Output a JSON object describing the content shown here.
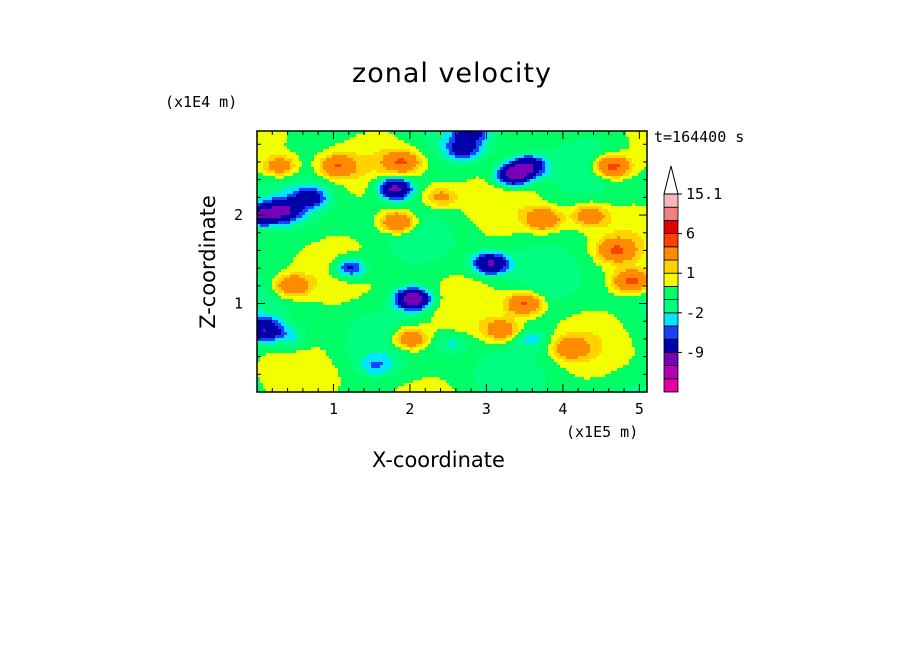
{
  "chart_data": {
    "type": "heatmap",
    "title": "zonal velocity",
    "xlabel": "X-coordinate",
    "ylabel": "Z-coordinate",
    "x_unit": "(x1E5 m)",
    "y_unit": "(x1E4 m)",
    "time_label": "t=164400 s",
    "xlim": [
      0,
      5.1
    ],
    "ylim": [
      0,
      2.95
    ],
    "x_ticks": [
      "1",
      "2",
      "3",
      "4",
      "5"
    ],
    "x_tick_values": [
      1,
      2,
      3,
      4,
      5
    ],
    "y_ticks": [
      "1",
      "2"
    ],
    "y_tick_values": [
      1,
      2
    ],
    "colorbar": {
      "labels": [
        "15.1",
        "6",
        "1",
        "-2",
        "-9"
      ],
      "label_values": [
        15.1,
        6,
        1,
        -2,
        -9
      ],
      "levels": [
        -15,
        -12,
        -9,
        -6,
        -3,
        -2,
        -1,
        0,
        1,
        2,
        3,
        6,
        9,
        12,
        15.1
      ],
      "colors": [
        "#e6009f",
        "#b300b3",
        "#7a00b8",
        "#0000a8",
        "#1a40ff",
        "#00e6ff",
        "#00ff80",
        "#00ff66",
        "#f2ff00",
        "#ffd200",
        "#ff8c00",
        "#ff4000",
        "#e60000",
        "#f08080",
        "#f5b8b8"
      ],
      "extend": "max"
    },
    "field_features": [
      {
        "x": 0.05,
        "z": 2.0,
        "value": -6
      },
      {
        "x": 0.35,
        "z": 2.05,
        "value": -6
      },
      {
        "x": 0.7,
        "z": 2.2,
        "value": -4
      },
      {
        "x": 1.22,
        "z": 1.4,
        "value": -5
      },
      {
        "x": 1.8,
        "z": 2.3,
        "value": -8
      },
      {
        "x": 2.05,
        "z": 1.05,
        "value": -9
      },
      {
        "x": 3.05,
        "z": 1.45,
        "value": -7
      },
      {
        "x": 3.35,
        "z": 2.45,
        "value": -8
      },
      {
        "x": 3.55,
        "z": 2.55,
        "value": -6
      },
      {
        "x": 2.7,
        "z": 2.75,
        "value": -4
      },
      {
        "x": 2.8,
        "z": 2.95,
        "value": -4
      },
      {
        "x": 0.1,
        "z": 0.7,
        "value": -6
      },
      {
        "x": 0.45,
        "z": 0.6,
        "value": -2
      },
      {
        "x": 1.55,
        "z": 0.3,
        "value": -2
      },
      {
        "x": 2.55,
        "z": 0.55,
        "value": -2
      },
      {
        "x": 3.6,
        "z": 0.6,
        "value": -2
      },
      {
        "x": 4.65,
        "z": 2.55,
        "value": 7
      },
      {
        "x": 4.9,
        "z": 1.25,
        "value": 6
      },
      {
        "x": 4.7,
        "z": 1.6,
        "value": 5
      },
      {
        "x": 0.45,
        "z": 1.2,
        "value": 5
      },
      {
        "x": 1.85,
        "z": 1.92,
        "value": 6
      },
      {
        "x": 3.5,
        "z": 1.0,
        "value": 6
      },
      {
        "x": 3.75,
        "z": 1.95,
        "value": 5
      },
      {
        "x": 1.9,
        "z": 2.6,
        "value": 5
      },
      {
        "x": 1.05,
        "z": 2.55,
        "value": 5
      },
      {
        "x": 2.0,
        "z": 0.6,
        "value": 5
      },
      {
        "x": 3.2,
        "z": 0.7,
        "value": 4
      },
      {
        "x": 4.1,
        "z": 0.5,
        "value": 4
      },
      {
        "x": 0.3,
        "z": 2.55,
        "value": 4
      },
      {
        "x": 2.4,
        "z": 2.2,
        "value": 3
      },
      {
        "x": 4.35,
        "z": 2.0,
        "value": 4
      }
    ]
  }
}
